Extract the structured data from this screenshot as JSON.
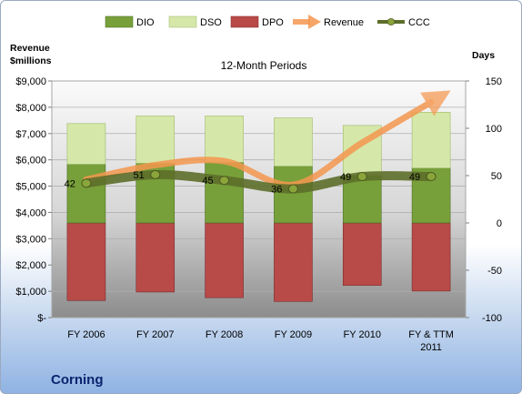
{
  "company": "Corning",
  "chart_data": {
    "type": "bar",
    "title": "12-Month Periods",
    "categories": [
      "FY 2006",
      "FY 2007",
      "FY 2008",
      "FY 2009",
      "FY 2010",
      "FY & TTM 2011"
    ],
    "y_left": {
      "label_line1": "Revenue",
      "label_line2": "$millions",
      "ylim": [
        0,
        9000
      ],
      "ticks": [
        0,
        1000,
        2000,
        3000,
        4000,
        5000,
        6000,
        7000,
        8000,
        9000
      ],
      "tick_labels": [
        "$-",
        "$1,000",
        "$2,000",
        "$3,000",
        "$4,000",
        "$5,000",
        "$6,000",
        "$7,000",
        "$8,000",
        "$9,000"
      ]
    },
    "y_right": {
      "label": "Days",
      "ylim": [
        -100,
        150
      ],
      "ticks": [
        -100,
        -50,
        0,
        50,
        100,
        150
      ],
      "tick_labels": [
        "-100",
        "-50",
        "0",
        "50",
        "100",
        "150"
      ]
    },
    "legend_position": "top",
    "series": [
      {
        "name": "DIO",
        "axis": "right",
        "kind": "bar",
        "color": "#77a03a",
        "values": [
          62,
          63,
          64,
          60,
          50,
          58
        ]
      },
      {
        "name": "DSO",
        "axis": "right",
        "kind": "bar",
        "color": "#d5e8a9",
        "values": [
          43,
          50,
          49,
          51,
          53,
          59
        ]
      },
      {
        "name": "DPO",
        "axis": "right",
        "kind": "bar",
        "color": "#b84a48",
        "values": [
          -82,
          -73,
          -79,
          -83,
          -66,
          -72
        ]
      },
      {
        "name": "Revenue",
        "axis": "left",
        "kind": "line",
        "color": "#f4974f",
        "values": [
          5250,
          5800,
          5950,
          5050,
          6650,
          8200
        ]
      },
      {
        "name": "CCC",
        "axis": "right",
        "kind": "line",
        "color": "#5d6e2a",
        "values": [
          42,
          51,
          45,
          36,
          49,
          49
        ],
        "data_labels": [
          "42",
          "51",
          "45",
          "36",
          "49",
          "49"
        ]
      }
    ]
  }
}
